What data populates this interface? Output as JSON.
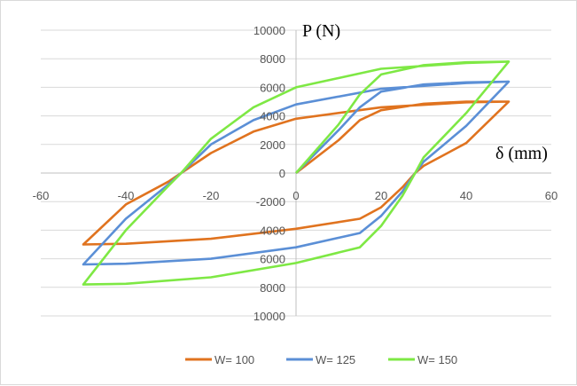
{
  "chart_data": {
    "type": "line",
    "title": "",
    "xlabel": "δ (mm)",
    "ylabel": "P (N)",
    "xlim": [
      -60,
      60
    ],
    "ylim": [
      -10000,
      10000
    ],
    "x_ticks": [
      "-60",
      "-40",
      "-20",
      "0",
      "20",
      "40",
      "60"
    ],
    "y_ticks": [
      "10000",
      "8000",
      "6000",
      "4000",
      "2000",
      "0",
      "-2000",
      "4000",
      "6000",
      "8000",
      "10000"
    ],
    "grid": "horizontal",
    "legend": "bottom",
    "series": [
      {
        "name": "W= 100",
        "color": "#e0731f",
        "points": [
          [
            0,
            0
          ],
          [
            10,
            2300
          ],
          [
            15,
            3700
          ],
          [
            20,
            4400
          ],
          [
            30,
            4850
          ],
          [
            40,
            5000
          ],
          [
            50,
            5000
          ],
          [
            40,
            2100
          ],
          [
            30,
            500
          ],
          [
            28,
            0
          ],
          [
            25,
            -1000
          ],
          [
            20,
            -2400
          ],
          [
            15,
            -3200
          ],
          [
            0,
            -3900
          ],
          [
            -20,
            -4600
          ],
          [
            -40,
            -4950
          ],
          [
            -50,
            -5000
          ],
          [
            -40,
            -2200
          ],
          [
            -30,
            -600
          ],
          [
            -27,
            0
          ],
          [
            -20,
            1400
          ],
          [
            -10,
            2900
          ],
          [
            0,
            3800
          ],
          [
            20,
            4600
          ],
          [
            40,
            4950
          ],
          [
            50,
            5000
          ]
        ]
      },
      {
        "name": "W= 125",
        "color": "#5b8fd6",
        "points": [
          [
            0,
            0
          ],
          [
            10,
            3000
          ],
          [
            15,
            4600
          ],
          [
            20,
            5700
          ],
          [
            30,
            6200
          ],
          [
            40,
            6350
          ],
          [
            50,
            6400
          ],
          [
            40,
            3300
          ],
          [
            30,
            800
          ],
          [
            28,
            0
          ],
          [
            25,
            -1300
          ],
          [
            20,
            -3000
          ],
          [
            15,
            -4200
          ],
          [
            0,
            -5200
          ],
          [
            -20,
            -6000
          ],
          [
            -40,
            -6350
          ],
          [
            -50,
            -6400
          ],
          [
            -40,
            -3200
          ],
          [
            -30,
            -800
          ],
          [
            -27,
            0
          ],
          [
            -20,
            2000
          ],
          [
            -10,
            3700
          ],
          [
            0,
            4800
          ],
          [
            20,
            5900
          ],
          [
            40,
            6300
          ],
          [
            50,
            6400
          ]
        ]
      },
      {
        "name": "W= 150",
        "color": "#7ee844",
        "points": [
          [
            0,
            0
          ],
          [
            10,
            3400
          ],
          [
            15,
            5500
          ],
          [
            20,
            6900
          ],
          [
            30,
            7550
          ],
          [
            40,
            7750
          ],
          [
            50,
            7800
          ],
          [
            40,
            4200
          ],
          [
            30,
            1100
          ],
          [
            28,
            0
          ],
          [
            25,
            -1600
          ],
          [
            20,
            -3700
          ],
          [
            15,
            -5200
          ],
          [
            0,
            -6300
          ],
          [
            -20,
            -7300
          ],
          [
            -40,
            -7750
          ],
          [
            -50,
            -7800
          ],
          [
            -40,
            -4000
          ],
          [
            -30,
            -900
          ],
          [
            -27,
            0
          ],
          [
            -20,
            2400
          ],
          [
            -10,
            4600
          ],
          [
            0,
            6000
          ],
          [
            20,
            7300
          ],
          [
            40,
            7700
          ],
          [
            50,
            7800
          ]
        ]
      }
    ]
  }
}
